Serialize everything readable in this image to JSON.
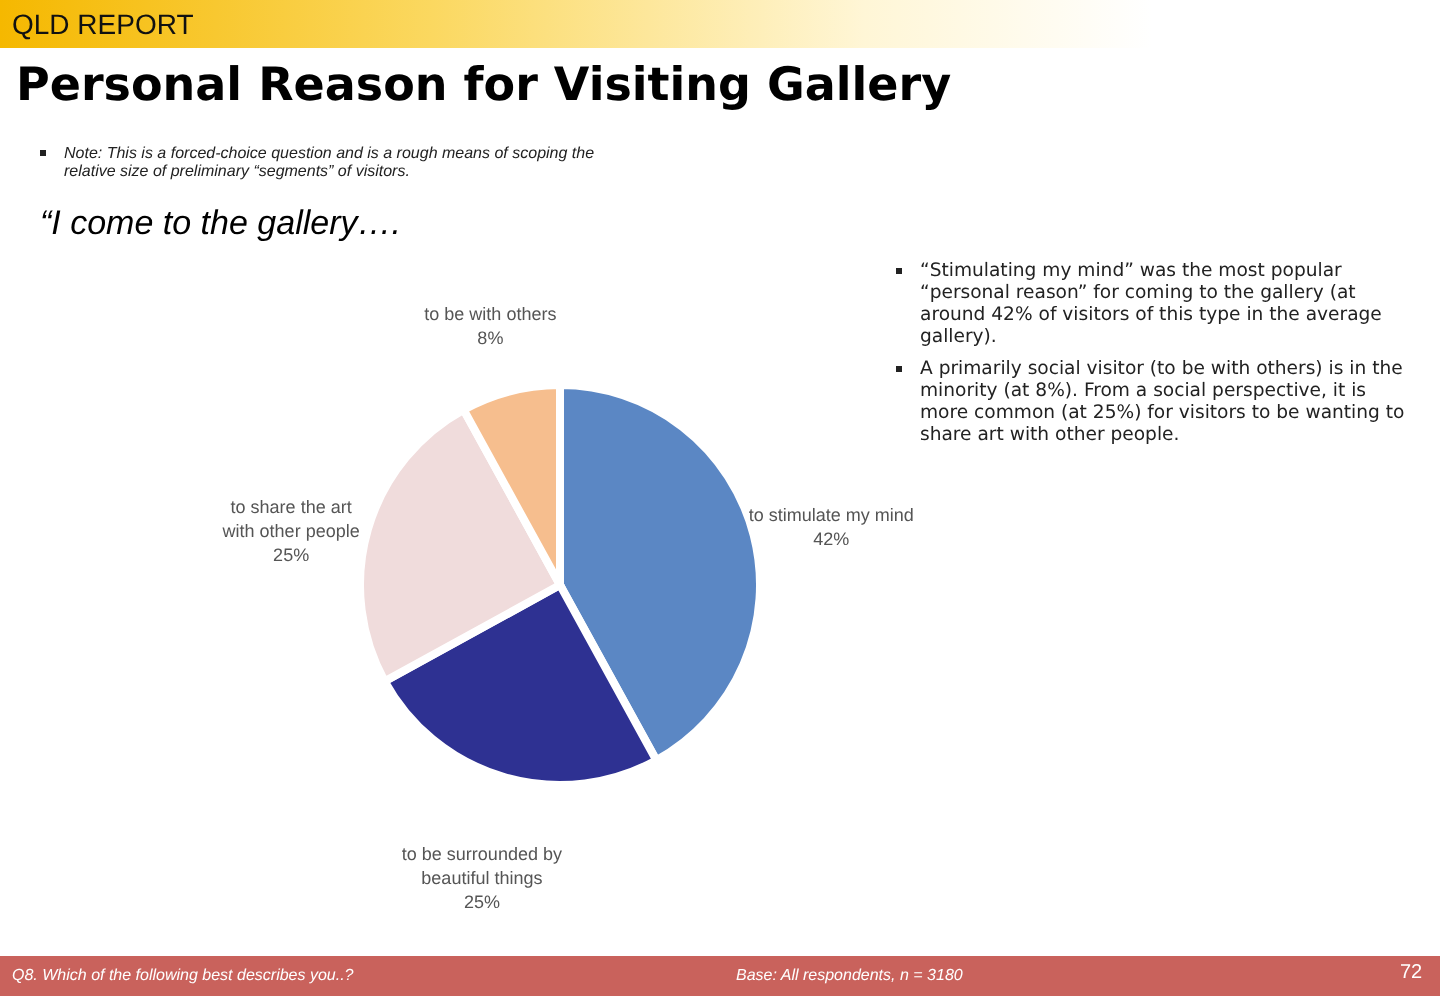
{
  "chart_data": {
    "type": "pie",
    "title": "Personal Reason for Visiting Gallery",
    "subtitle": "“I come to the gallery….",
    "categories": [
      "to stimulate my mind",
      "to be surrounded by beautiful things",
      "to share the art with other people",
      "to be with others"
    ],
    "values": [
      42,
      25,
      25,
      8
    ],
    "colors": [
      "#5b87c4",
      "#2e3192",
      "#f0dcdc",
      "#f6be8e"
    ],
    "value_labels": [
      "42%",
      "25%",
      "25%",
      "8%"
    ],
    "annotations": [
      "QLD REPORT",
      "Note: This is a forced-choice question and is a rough means of scoping the relative size of preliminary “segments” of visitors.",
      "“Stimulating my mind” was the most popular “personal reason” for coming to the gallery (at around 42% of visitors of this type in the average gallery).",
      "A primarily social visitor (to be with others) is in the minority (at 8%). From a social perspective, it is more common (at 25%) for visitors to be wanting to share art with other people.",
      "Q8. Which of the following best describes you..?",
      "Base: All respondents, n = 3180",
      "72"
    ]
  }
}
